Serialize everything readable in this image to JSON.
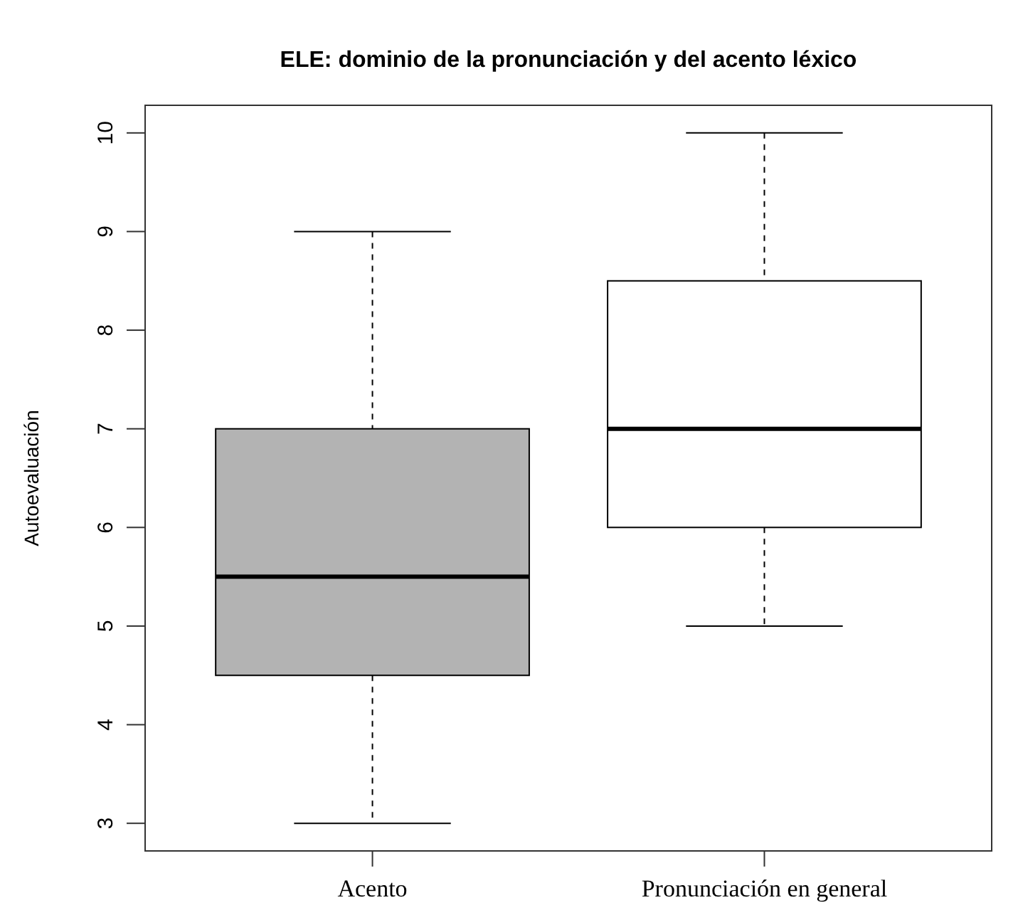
{
  "chart_data": {
    "type": "box",
    "title": "ELE: dominio de la pronunciación y del acento léxico",
    "ylabel": "Autoevaluación",
    "categories": [
      "Acento",
      "Pronunciación en general"
    ],
    "colors": [
      "#b3b3b3",
      "#ffffff"
    ],
    "boxes": [
      {
        "low": 3,
        "q1": 4.5,
        "median": 5.5,
        "q3": 7,
        "high": 9
      },
      {
        "low": 5,
        "q1": 6,
        "median": 7,
        "q3": 8.5,
        "high": 10
      }
    ],
    "ylim": [
      2.72,
      10.28
    ],
    "yticks": [
      3,
      4,
      5,
      6,
      7,
      8,
      9,
      10
    ],
    "grid": false
  }
}
